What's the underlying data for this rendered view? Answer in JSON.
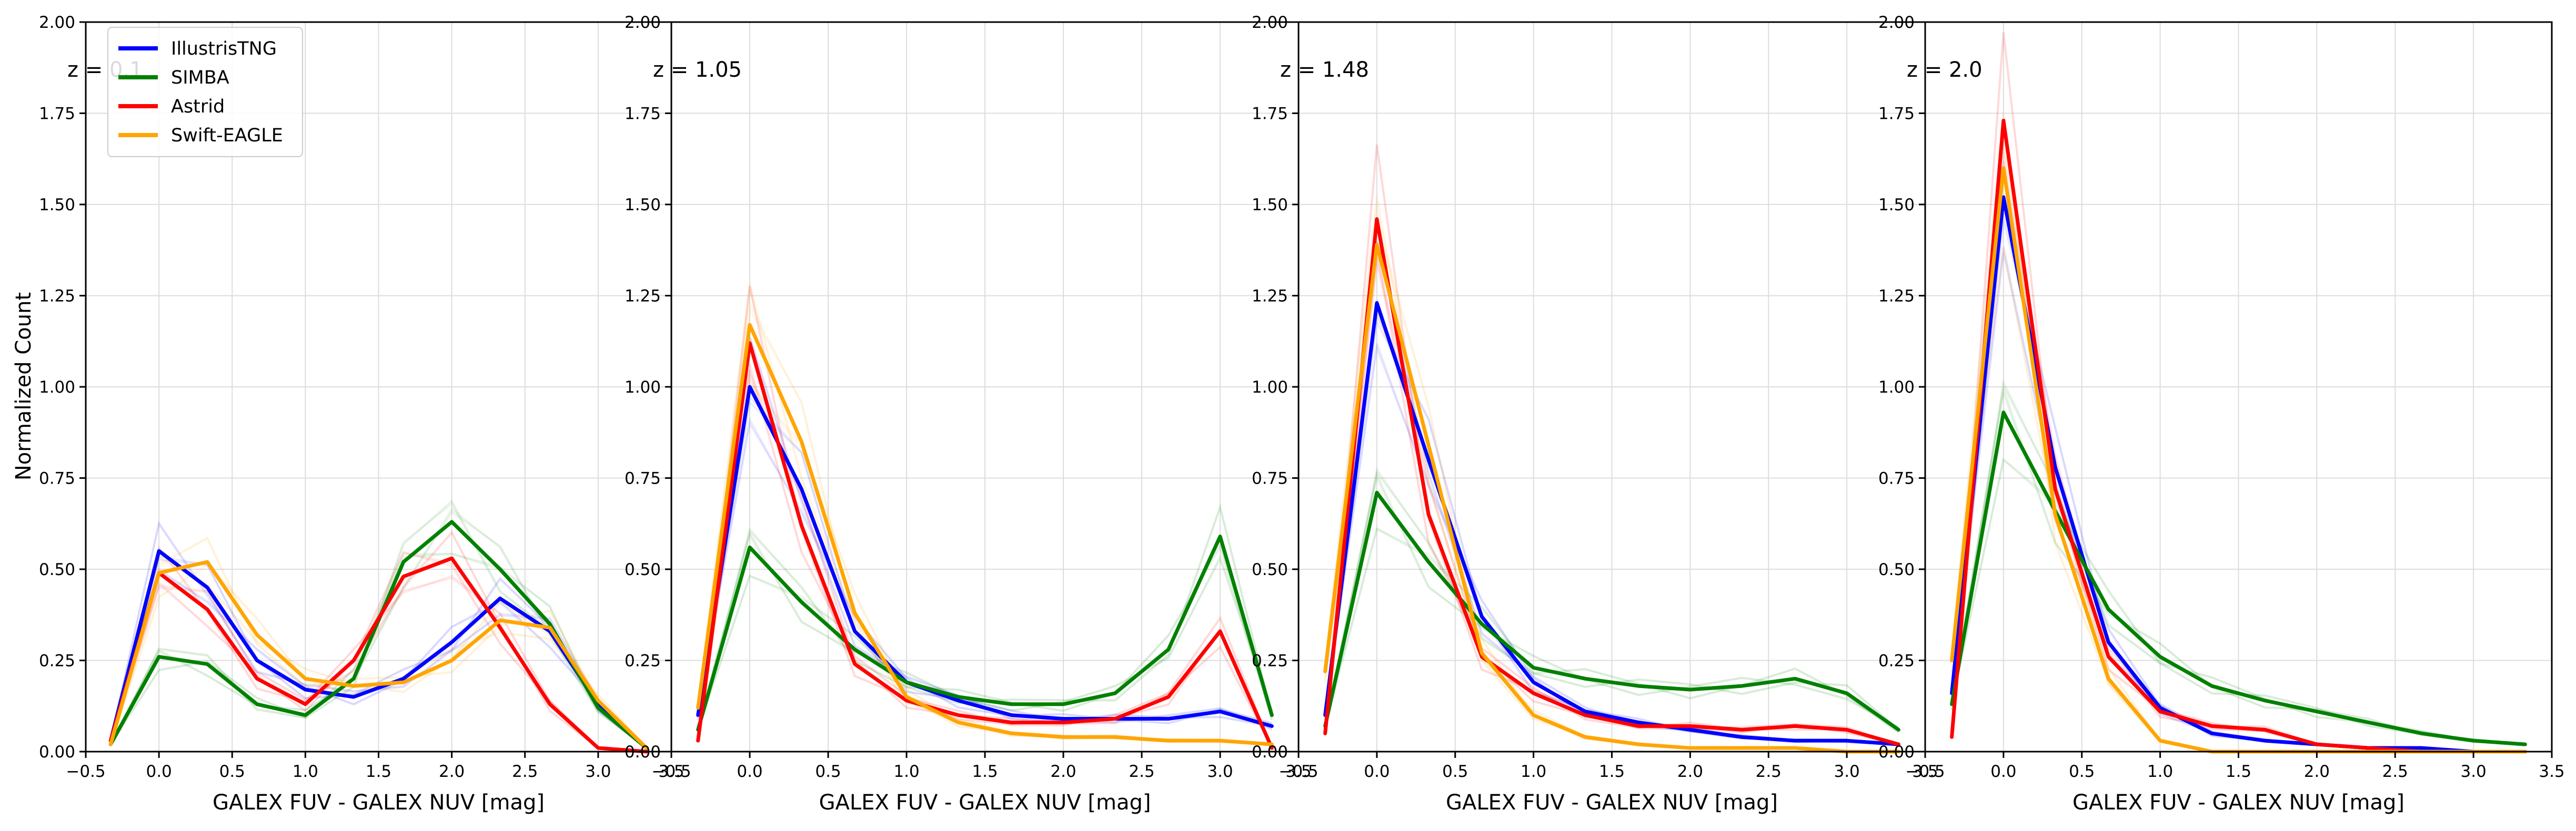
{
  "figure": {
    "shared_ylabel": "Normalized Count",
    "legend": [
      "IllustrisTNG",
      "SIMBA",
      "Astrid",
      "Swift-EAGLE"
    ]
  },
  "colors": {
    "IllustrisTNG": "#0000ff",
    "SIMBA": "#008000",
    "Astrid": "#ff0000",
    "Swift-EAGLE": "#ffa500",
    "grid": "#dddddd",
    "axes": "#000000"
  },
  "chart_data": [
    {
      "type": "line",
      "annotation": "z = 0.1",
      "xlabel": "GALEX FUV - GALEX NUV [mag]",
      "ylabel": "Normalized Count",
      "xlim": [
        -0.5,
        3.5
      ],
      "ylim": [
        0,
        2.0
      ],
      "xticks": [
        "−0.5",
        "0.0",
        "0.5",
        "1.0",
        "1.5",
        "2.0",
        "2.5",
        "3.0",
        "3.5"
      ],
      "yticks": [
        "0.00",
        "0.25",
        "0.50",
        "0.75",
        "1.00",
        "1.25",
        "1.50",
        "1.75",
        "2.00"
      ],
      "grid": true,
      "legend_position": "upper-left",
      "x": [
        -0.33,
        0.0,
        0.33,
        0.67,
        1.0,
        1.33,
        1.67,
        2.0,
        2.33,
        2.67,
        3.0,
        3.33
      ],
      "series": [
        {
          "name": "IllustrisTNG",
          "values": [
            0.03,
            0.55,
            0.45,
            0.25,
            0.17,
            0.15,
            0.2,
            0.3,
            0.42,
            0.33,
            0.13,
            0.01
          ]
        },
        {
          "name": "SIMBA",
          "values": [
            0.02,
            0.26,
            0.24,
            0.13,
            0.1,
            0.2,
            0.52,
            0.63,
            0.5,
            0.35,
            0.12,
            0.01
          ]
        },
        {
          "name": "Astrid",
          "values": [
            0.03,
            0.49,
            0.39,
            0.2,
            0.13,
            0.25,
            0.48,
            0.53,
            0.34,
            0.13,
            0.01,
            0.0
          ]
        },
        {
          "name": "Swift-EAGLE",
          "values": [
            0.02,
            0.49,
            0.52,
            0.32,
            0.2,
            0.18,
            0.19,
            0.25,
            0.36,
            0.34,
            0.14,
            0.01
          ]
        }
      ]
    },
    {
      "type": "line",
      "annotation": "z = 1.05",
      "xlabel": "GALEX FUV - GALEX NUV [mag]",
      "xlim": [
        -0.5,
        3.5
      ],
      "ylim": [
        0,
        2.0
      ],
      "xticks": [
        "−0.5",
        "0.0",
        "0.5",
        "1.0",
        "1.5",
        "2.0",
        "2.5",
        "3.0",
        "3.5"
      ],
      "yticks": [
        "0.00",
        "0.25",
        "0.50",
        "0.75",
        "1.00",
        "1.25",
        "1.50",
        "1.75",
        "2.00"
      ],
      "grid": true,
      "x": [
        -0.33,
        0.0,
        0.33,
        0.67,
        1.0,
        1.33,
        1.67,
        2.0,
        2.33,
        2.67,
        3.0,
        3.33
      ],
      "series": [
        {
          "name": "IllustrisTNG",
          "values": [
            0.1,
            1.0,
            0.72,
            0.33,
            0.19,
            0.14,
            0.1,
            0.09,
            0.09,
            0.09,
            0.11,
            0.07
          ]
        },
        {
          "name": "SIMBA",
          "values": [
            0.06,
            0.56,
            0.41,
            0.28,
            0.19,
            0.15,
            0.13,
            0.13,
            0.16,
            0.28,
            0.59,
            0.1
          ]
        },
        {
          "name": "Astrid",
          "values": [
            0.03,
            1.12,
            0.62,
            0.24,
            0.14,
            0.1,
            0.08,
            0.08,
            0.09,
            0.15,
            0.33,
            0.01
          ]
        },
        {
          "name": "Swift-EAGLE",
          "values": [
            0.12,
            1.17,
            0.85,
            0.38,
            0.15,
            0.08,
            0.05,
            0.04,
            0.04,
            0.03,
            0.03,
            0.02
          ]
        }
      ]
    },
    {
      "type": "line",
      "annotation": "z = 1.48",
      "xlabel": "GALEX FUV - GALEX NUV [mag]",
      "xlim": [
        -0.5,
        3.5
      ],
      "ylim": [
        0,
        2.0
      ],
      "xticks": [
        "−0.5",
        "0.0",
        "0.5",
        "1.0",
        "1.5",
        "2.0",
        "2.5",
        "3.0",
        "3.5"
      ],
      "yticks": [
        "0.00",
        "0.25",
        "0.50",
        "0.75",
        "1.00",
        "1.25",
        "1.50",
        "1.75",
        "2.00"
      ],
      "grid": true,
      "x": [
        -0.33,
        0.0,
        0.33,
        0.67,
        1.0,
        1.33,
        1.67,
        2.0,
        2.33,
        2.67,
        3.0,
        3.33
      ],
      "series": [
        {
          "name": "IllustrisTNG",
          "values": [
            0.1,
            1.23,
            0.8,
            0.37,
            0.19,
            0.11,
            0.08,
            0.06,
            0.04,
            0.03,
            0.03,
            0.02
          ]
        },
        {
          "name": "SIMBA",
          "values": [
            0.07,
            0.71,
            0.52,
            0.35,
            0.23,
            0.2,
            0.18,
            0.17,
            0.18,
            0.2,
            0.16,
            0.06
          ]
        },
        {
          "name": "Astrid",
          "values": [
            0.05,
            1.46,
            0.65,
            0.26,
            0.16,
            0.1,
            0.07,
            0.07,
            0.06,
            0.07,
            0.06,
            0.02
          ]
        },
        {
          "name": "Swift-EAGLE",
          "values": [
            0.22,
            1.39,
            0.84,
            0.27,
            0.1,
            0.04,
            0.02,
            0.01,
            0.01,
            0.01,
            0.0,
            0.0
          ]
        }
      ]
    },
    {
      "type": "line",
      "annotation": "z = 2.0",
      "xlabel": "GALEX FUV - GALEX NUV [mag]",
      "xlim": [
        -0.5,
        3.5
      ],
      "ylim": [
        0,
        2.0
      ],
      "xticks": [
        "−0.5",
        "0.0",
        "0.5",
        "1.0",
        "1.5",
        "2.0",
        "2.5",
        "3.0",
        "3.5"
      ],
      "yticks": [
        "0.00",
        "0.25",
        "0.50",
        "0.75",
        "1.00",
        "1.25",
        "1.50",
        "1.75",
        "2.00"
      ],
      "grid": true,
      "x": [
        -0.33,
        0.0,
        0.33,
        0.67,
        1.0,
        1.33,
        1.67,
        2.0,
        2.33,
        2.67,
        3.0,
        3.33
      ],
      "series": [
        {
          "name": "IllustrisTNG",
          "values": [
            0.16,
            1.52,
            0.78,
            0.3,
            0.12,
            0.05,
            0.03,
            0.02,
            0.01,
            0.01,
            0.0,
            0.0
          ]
        },
        {
          "name": "SIMBA",
          "values": [
            0.13,
            0.93,
            0.66,
            0.39,
            0.26,
            0.18,
            0.14,
            0.11,
            0.08,
            0.05,
            0.03,
            0.02
          ]
        },
        {
          "name": "Astrid",
          "values": [
            0.04,
            1.73,
            0.72,
            0.26,
            0.11,
            0.07,
            0.06,
            0.02,
            0.01,
            0.0,
            0.0,
            0.0
          ]
        },
        {
          "name": "Swift-EAGLE",
          "values": [
            0.25,
            1.6,
            0.65,
            0.2,
            0.03,
            0.0,
            0.0,
            0.0,
            0.0,
            0.0,
            0.0,
            0.0
          ]
        }
      ]
    }
  ]
}
